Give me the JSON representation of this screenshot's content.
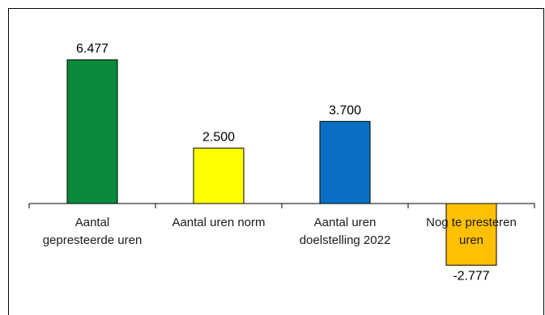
{
  "chart_data": {
    "type": "bar",
    "categories": [
      [
        "Aantal",
        "gepresteerde uren"
      ],
      [
        "Aantal uren norm"
      ],
      [
        "Aantal uren",
        "doelstelling 2022"
      ],
      [
        "Nog te presteren",
        "uren"
      ]
    ],
    "values": [
      6477,
      2500,
      3700,
      -2777
    ],
    "value_labels": [
      "6.477",
      "2.500",
      "3.700",
      "-2.777"
    ],
    "colors": [
      "#0a8a3a",
      "#ffff00",
      "#0a6fc2",
      "#ffc000"
    ],
    "ylim": [
      -2777,
      6477
    ],
    "grid": false,
    "legend": "none"
  }
}
